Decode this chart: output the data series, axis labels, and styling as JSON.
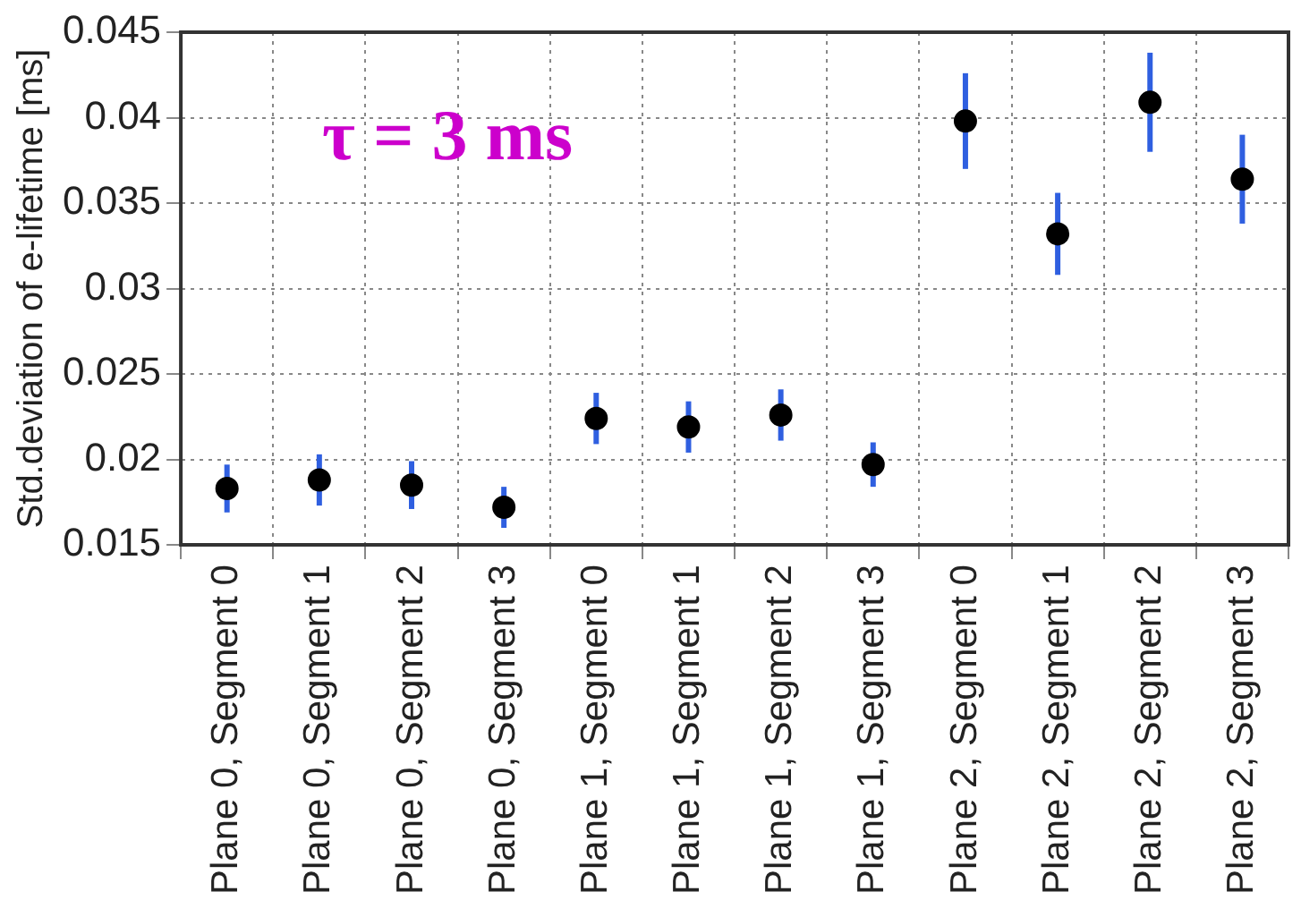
{
  "chart_data": {
    "type": "scatter",
    "ylabel": "Std.deviation of e-lifetime [ms]",
    "annotations": [
      "τ = 3 ms"
    ],
    "categories": [
      "Plane 0, Segment 0",
      "Plane 0, Segment 1",
      "Plane 0, Segment 2",
      "Plane 0, Segment 3",
      "Plane 1, Segment 0",
      "Plane 1, Segment 1",
      "Plane 1, Segment 2",
      "Plane 1, Segment 3",
      "Plane 2, Segment 0",
      "Plane 2, Segment 1",
      "Plane 2, Segment 2",
      "Plane 2, Segment 3"
    ],
    "series": [
      {
        "color": "#000000",
        "values": [
          0.0183,
          0.0188,
          0.0185,
          0.0172,
          0.0224,
          0.0219,
          0.0226,
          0.0197,
          0.0398,
          0.0332,
          0.0409,
          0.0364
        ],
        "errors": [
          0.0014,
          0.0015,
          0.0014,
          0.0012,
          0.0015,
          0.0015,
          0.0015,
          0.0013,
          0.0028,
          0.0024,
          0.0029,
          0.0026
        ]
      }
    ],
    "ylim": [
      0.015,
      0.045
    ],
    "yticks": [
      0.015,
      0.02,
      0.025,
      0.03,
      0.035,
      0.04,
      0.045
    ],
    "grid": true,
    "marker": "circle",
    "legend": false
  }
}
